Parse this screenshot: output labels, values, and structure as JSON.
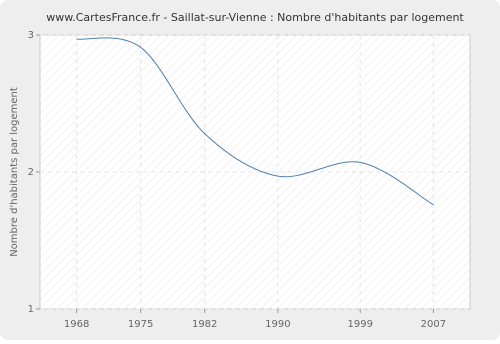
{
  "chart_data": {
    "type": "line",
    "title": "www.CartesFrance.fr - Saillat-sur-Vienne : Nombre d'habitants par logement",
    "y_label": "Nombre d'habitants par logement",
    "x": [
      1968,
      1975,
      1982,
      1990,
      1999,
      2007
    ],
    "series": [
      {
        "name": "Nombre d'habitants par logement",
        "color": "#4f7fb0",
        "values": [
          2.97,
          2.91,
          2.28,
          1.97,
          2.07,
          1.76
        ]
      }
    ],
    "xlim": [
      1964,
      2011
    ],
    "xticks": [
      1968,
      1975,
      1982,
      1990,
      1999,
      2007
    ],
    "ylim": [
      1,
      3
    ],
    "yticks": [
      1,
      2,
      3
    ],
    "grid": true
  }
}
